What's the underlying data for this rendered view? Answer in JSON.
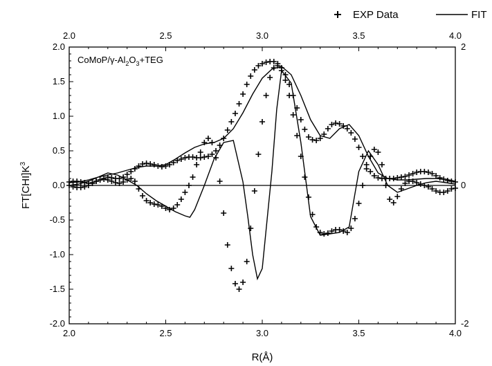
{
  "chart_data": {
    "type": "line",
    "title": "",
    "annotation": {
      "prefix": "CoMoP/",
      "gamma": "γ",
      "rest_a": "-Al",
      "sub1": "2",
      "rest_b": "O",
      "sub2": "3",
      "rest_c": "+TEG"
    },
    "xlabel": "R(Å)",
    "ylabel": {
      "main": "FT[CHI]K",
      "sup": "3"
    },
    "xlim": [
      2.0,
      4.0
    ],
    "ylim": [
      -2.0,
      2.0
    ],
    "x_ticks": [
      "2.0",
      "2.5",
      "3.0",
      "3.5",
      "4.0"
    ],
    "x_ticks_top": [
      "2.0",
      "2.5",
      "3.0",
      "3.5",
      "4.0"
    ],
    "y_ticks": [
      "-2.0",
      "-1.5",
      "-1.0",
      "-0.5",
      "0.0",
      "0.5",
      "1.0",
      "1.5",
      "2.0"
    ],
    "y_ticks_right": [
      "2",
      "0",
      "-2"
    ],
    "grid": false,
    "legend": {
      "position": "top-right",
      "entries": [
        {
          "marker": "+",
          "label": "EXP Data"
        },
        {
          "marker": "line",
          "label": "FIT"
        }
      ]
    },
    "series": [
      {
        "name": "EXP Data",
        "role": "magnitude",
        "x": [
          2.0,
          2.02,
          2.04,
          2.06,
          2.08,
          2.1,
          2.12,
          2.14,
          2.16,
          2.18,
          2.2,
          2.22,
          2.24,
          2.26,
          2.28,
          2.3,
          2.32,
          2.34,
          2.36,
          2.38,
          2.4,
          2.42,
          2.44,
          2.46,
          2.48,
          2.5,
          2.52,
          2.54,
          2.56,
          2.58,
          2.6,
          2.62,
          2.64,
          2.66,
          2.68,
          2.7,
          2.72,
          2.74,
          2.76,
          2.78,
          2.8,
          2.82,
          2.84,
          2.86,
          2.88,
          2.9,
          2.92,
          2.94,
          2.96,
          2.98,
          3.0,
          3.02,
          3.04,
          3.06,
          3.08,
          3.1,
          3.12,
          3.14,
          3.16,
          3.18,
          3.2,
          3.22,
          3.24,
          3.26,
          3.28,
          3.3,
          3.32,
          3.34,
          3.36,
          3.38,
          3.4,
          3.42,
          3.44,
          3.46,
          3.48,
          3.5,
          3.52,
          3.54,
          3.56,
          3.58,
          3.6,
          3.62,
          3.64,
          3.66,
          3.68,
          3.7,
          3.72,
          3.74,
          3.76,
          3.78,
          3.8,
          3.82,
          3.84,
          3.86,
          3.88,
          3.9,
          3.92,
          3.94,
          3.96,
          3.98,
          4.0
        ],
        "y": [
          0.05,
          0.06,
          0.06,
          0.05,
          0.04,
          0.03,
          0.04,
          0.06,
          0.08,
          0.1,
          0.12,
          0.11,
          0.1,
          0.1,
          0.12,
          0.16,
          0.2,
          0.24,
          0.28,
          0.31,
          0.32,
          0.31,
          0.3,
          0.28,
          0.27,
          0.28,
          0.3,
          0.33,
          0.36,
          0.38,
          0.4,
          0.41,
          0.41,
          0.4,
          0.4,
          0.41,
          0.42,
          0.45,
          0.5,
          0.58,
          0.68,
          0.8,
          0.92,
          1.04,
          1.18,
          1.32,
          1.46,
          1.58,
          1.67,
          1.73,
          1.76,
          1.78,
          1.79,
          1.79,
          1.76,
          1.7,
          1.6,
          1.46,
          1.3,
          1.12,
          0.95,
          0.81,
          0.7,
          0.66,
          0.65,
          0.68,
          0.74,
          0.82,
          0.88,
          0.9,
          0.89,
          0.86,
          0.82,
          0.76,
          0.67,
          0.55,
          0.42,
          0.3,
          0.2,
          0.14,
          0.11,
          0.1,
          0.1,
          0.1,
          0.1,
          0.11,
          0.12,
          0.13,
          0.15,
          0.17,
          0.19,
          0.2,
          0.2,
          0.19,
          0.17,
          0.14,
          0.11,
          0.09,
          0.07,
          0.06,
          0.05
        ]
      },
      {
        "name": "FIT",
        "role": "magnitude",
        "x": [
          2.0,
          2.05,
          2.1,
          2.15,
          2.2,
          2.25,
          2.3,
          2.35,
          2.4,
          2.45,
          2.5,
          2.55,
          2.6,
          2.65,
          2.7,
          2.75,
          2.8,
          2.85,
          2.9,
          2.95,
          3.0,
          3.05,
          3.1,
          3.15,
          3.2,
          3.25,
          3.3,
          3.35,
          3.4,
          3.45,
          3.5,
          3.55,
          3.6,
          3.65,
          3.7,
          3.75,
          3.8,
          3.85,
          3.9,
          3.95,
          4.0
        ],
        "y": [
          0.04,
          0.05,
          0.08,
          0.12,
          0.15,
          0.18,
          0.22,
          0.26,
          0.28,
          0.28,
          0.3,
          0.38,
          0.47,
          0.55,
          0.6,
          0.62,
          0.68,
          0.82,
          1.05,
          1.32,
          1.55,
          1.68,
          1.72,
          1.6,
          1.3,
          0.95,
          0.72,
          0.68,
          0.82,
          0.88,
          0.72,
          0.42,
          0.18,
          0.1,
          0.08,
          0.08,
          0.09,
          0.1,
          0.1,
          0.09,
          0.06
        ]
      },
      {
        "name": "EXP Data",
        "role": "imaginary",
        "x": [
          2.0,
          2.02,
          2.04,
          2.06,
          2.08,
          2.1,
          2.12,
          2.14,
          2.16,
          2.18,
          2.2,
          2.22,
          2.24,
          2.26,
          2.28,
          2.3,
          2.32,
          2.34,
          2.36,
          2.38,
          2.4,
          2.42,
          2.44,
          2.46,
          2.48,
          2.5,
          2.52,
          2.54,
          2.56,
          2.58,
          2.6,
          2.62,
          2.64,
          2.66,
          2.68,
          2.7,
          2.72,
          2.74,
          2.76,
          2.78,
          2.8,
          2.82,
          2.84,
          2.86,
          2.88,
          2.9,
          2.92,
          2.94,
          2.96,
          2.98,
          3.0,
          3.02,
          3.04,
          3.06,
          3.08,
          3.1,
          3.12,
          3.14,
          3.16,
          3.18,
          3.2,
          3.22,
          3.24,
          3.26,
          3.28,
          3.3,
          3.32,
          3.34,
          3.36,
          3.38,
          3.4,
          3.42,
          3.44,
          3.46,
          3.48,
          3.5,
          3.52,
          3.54,
          3.56,
          3.58,
          3.6,
          3.62,
          3.64,
          3.66,
          3.68,
          3.7,
          3.72,
          3.74,
          3.76,
          3.78,
          3.8,
          3.82,
          3.84,
          3.86,
          3.88,
          3.9,
          3.92,
          3.94,
          3.96,
          3.98,
          4.0
        ],
        "y": [
          0.0,
          -0.02,
          -0.03,
          -0.03,
          -0.02,
          0.0,
          0.03,
          0.06,
          0.08,
          0.09,
          0.08,
          0.06,
          0.04,
          0.03,
          0.05,
          0.08,
          0.1,
          0.06,
          -0.05,
          -0.15,
          -0.22,
          -0.25,
          -0.27,
          -0.28,
          -0.3,
          -0.33,
          -0.35,
          -0.33,
          -0.28,
          -0.2,
          -0.1,
          0.0,
          0.12,
          0.3,
          0.48,
          0.62,
          0.68,
          0.62,
          0.4,
          0.06,
          -0.4,
          -0.86,
          -1.2,
          -1.42,
          -1.5,
          -1.4,
          -1.1,
          -0.62,
          -0.08,
          0.45,
          0.92,
          1.3,
          1.56,
          1.7,
          1.73,
          1.66,
          1.52,
          1.3,
          1.02,
          0.72,
          0.42,
          0.12,
          -0.17,
          -0.42,
          -0.6,
          -0.68,
          -0.7,
          -0.69,
          -0.66,
          -0.64,
          -0.64,
          -0.66,
          -0.68,
          -0.62,
          -0.48,
          -0.26,
          0.0,
          0.24,
          0.42,
          0.52,
          0.48,
          0.3,
          0.0,
          -0.2,
          -0.25,
          -0.16,
          -0.05,
          0.03,
          0.06,
          0.06,
          0.04,
          0.02,
          0.0,
          -0.02,
          -0.05,
          -0.08,
          -0.1,
          -0.1,
          -0.08,
          -0.05,
          -0.04
        ]
      },
      {
        "name": "FIT",
        "role": "imaginary",
        "x": [
          2.0,
          2.05,
          2.1,
          2.15,
          2.2,
          2.25,
          2.3,
          2.35,
          2.4,
          2.45,
          2.5,
          2.55,
          2.6,
          2.625,
          2.65,
          2.7,
          2.75,
          2.8,
          2.85,
          2.9,
          2.925,
          2.95,
          2.975,
          3.0,
          3.05,
          3.075,
          3.1,
          3.15,
          3.2,
          3.25,
          3.3,
          3.35,
          3.4,
          3.45,
          3.5,
          3.55,
          3.6,
          3.65,
          3.7,
          3.75,
          3.8,
          3.85,
          3.9,
          3.95,
          4.0
        ],
        "y": [
          0.0,
          0.02,
          0.06,
          0.12,
          0.18,
          0.15,
          0.08,
          0.0,
          -0.12,
          -0.22,
          -0.3,
          -0.38,
          -0.44,
          -0.46,
          -0.35,
          0.0,
          0.38,
          0.62,
          0.65,
          0.05,
          -0.45,
          -1.0,
          -1.35,
          -1.2,
          0.2,
          1.1,
          1.66,
          1.48,
          0.62,
          -0.45,
          -0.72,
          -0.7,
          -0.68,
          -0.6,
          0.2,
          0.5,
          0.3,
          0.0,
          -0.1,
          -0.05,
          0.0,
          0.04,
          0.06,
          0.04,
          0.02
        ]
      }
    ]
  }
}
